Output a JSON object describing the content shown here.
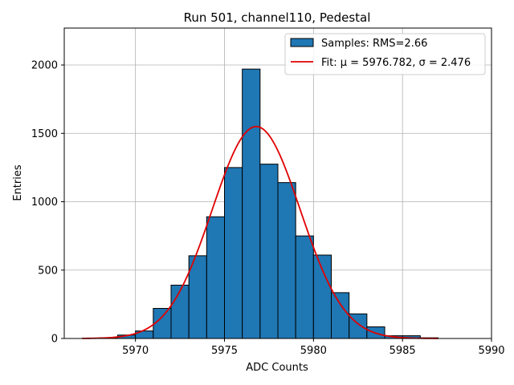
{
  "chart_data": {
    "type": "bar",
    "title": "Run 501, channel110, Pedestal",
    "xlabel": "ADC Counts",
    "ylabel": "Entries",
    "xlim": [
      5966,
      5990
    ],
    "ylim": [
      0,
      2270
    ],
    "xticks": [
      5970,
      5975,
      5980,
      5985,
      5990
    ],
    "yticks": [
      0,
      500,
      1000,
      1500,
      2000
    ],
    "grid": true,
    "legend_position": "top-right",
    "histogram": {
      "name": "Samples: RMS=2.66",
      "color": "#1f77b4",
      "edge_color": "#000000",
      "bin_edges": [
        5967,
        5968,
        5969,
        5970,
        5971,
        5972,
        5973,
        5974,
        5975,
        5976,
        5977,
        5978,
        5979,
        5980,
        5981,
        5982,
        5983,
        5984,
        5985,
        5986,
        5987
      ],
      "counts": [
        0,
        5,
        25,
        55,
        220,
        390,
        605,
        890,
        1250,
        1970,
        1275,
        1140,
        750,
        610,
        335,
        180,
        85,
        20,
        20,
        5
      ]
    },
    "fit": {
      "name": "Fit: μ = 5976.782, σ = 2.476",
      "color": "#e00000",
      "mu": 5976.782,
      "sigma": 2.476,
      "amplitude": 1550,
      "x_range": [
        5967,
        5987
      ]
    }
  }
}
